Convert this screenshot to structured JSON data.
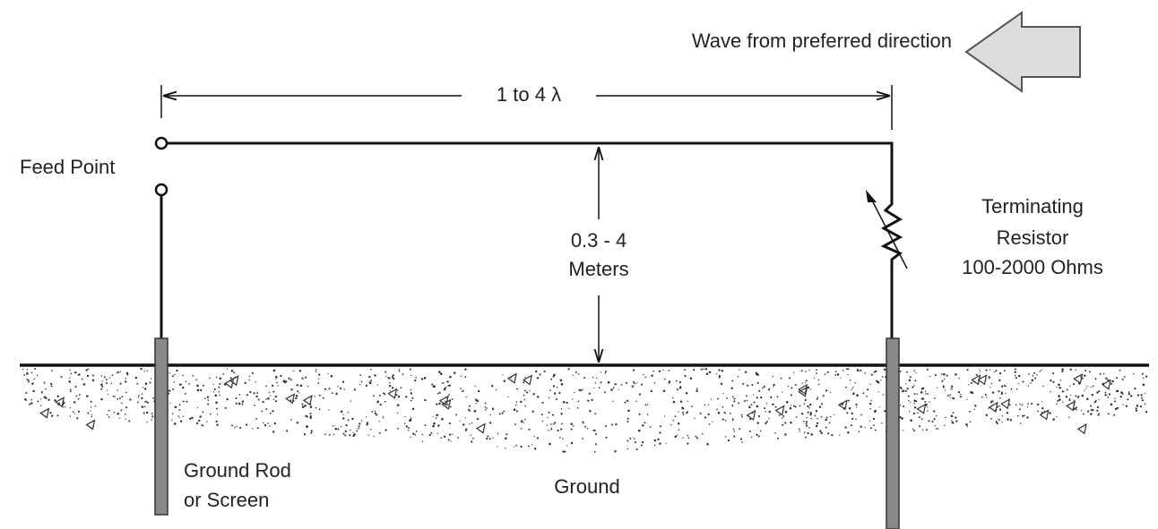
{
  "wave_label": "Wave from preferred direction",
  "length_label": "1 to 4 λ",
  "feed_point_label": "Feed Point",
  "height_label": {
    "line1": "0.3 - 4",
    "line2": "Meters"
  },
  "resistor_label": {
    "line1": "Terminating",
    "line2": "Resistor",
    "line3": "100-2000 Ohms"
  },
  "rod_label": {
    "line1": "Ground Rod",
    "line2": "or Screen"
  },
  "ground_label": "Ground"
}
